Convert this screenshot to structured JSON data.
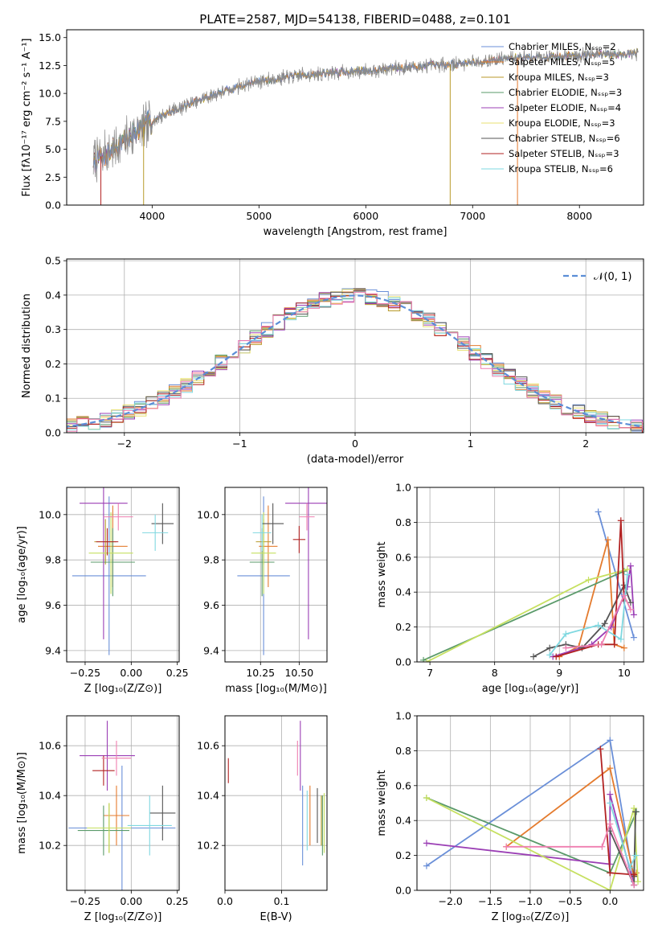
{
  "chart_data": [
    {
      "id": "spectrum",
      "type": "line",
      "title": "PLATE=2587, MJD=54138, FIBERID=0488, z=0.101",
      "xlabel": "wavelength [Angstrom, rest frame]",
      "ylabel": "Flux [fλ10⁻¹⁷ erg cm⁻² s⁻¹ A⁻¹]",
      "xlim": [
        3200,
        8600
      ],
      "ylim": [
        0,
        15.7
      ],
      "xticks": [
        4000,
        5000,
        6000,
        7000,
        8000
      ],
      "xtick_labels": [
        "4000",
        "5000",
        "6000",
        "7000",
        "8000"
      ],
      "yticks": [
        0,
        2.5,
        5,
        7.5,
        10,
        12.5,
        15
      ],
      "ytick_labels": [
        "0.0",
        "2.5",
        "5.0",
        "7.5",
        "10.0",
        "12.5",
        "15.0"
      ],
      "grid": false,
      "legend": "upper-right",
      "series": [
        {
          "name": "Chabrier MILES, Nₛₛₚ=2",
          "color": "#6a8fd8"
        },
        {
          "name": "Salpeter MILES, Nₛₛₚ=5",
          "color": "#e47b2e"
        },
        {
          "name": "Kroupa MILES, Nₛₛₚ=3",
          "color": "#b89a2a"
        },
        {
          "name": "Chabrier ELODIE, Nₛₛₚ=3",
          "color": "#5a9a6a"
        },
        {
          "name": "Salpeter ELODIE, Nₛₛₚ=4",
          "color": "#9b3fb5"
        },
        {
          "name": "Kroupa ELODIE, Nₛₛₚ=3",
          "color": "#e8e070"
        },
        {
          "name": "Chabrier STELIB, Nₛₛₚ=6",
          "color": "#555555"
        },
        {
          "name": "Salpeter STELIB, Nₛₛₚ=3",
          "color": "#b22222"
        },
        {
          "name": "Kroupa STELIB, Nₛₛₚ=6",
          "color": "#7fd8e0"
        }
      ],
      "data_color": "#8a8a8a",
      "continuum": {
        "x": [
          3450,
          3600,
          3800,
          4000,
          4200,
          4500,
          4800,
          5000,
          5300,
          5600,
          5900,
          6200,
          6500,
          6800,
          7100,
          7400,
          7700,
          8000,
          8300,
          8550
        ],
        "y": [
          4.0,
          4.8,
          6.2,
          7.5,
          8.5,
          9.6,
          10.6,
          11.1,
          11.5,
          11.8,
          12.0,
          12.2,
          12.4,
          12.6,
          12.9,
          13.2,
          13.3,
          13.4,
          13.5,
          13.6
        ]
      },
      "vertical_lines": [
        {
          "x": 3520,
          "color": "#b22222"
        },
        {
          "x": 3920,
          "color": "#b89a2a"
        },
        {
          "x": 6790,
          "color": "#b89a2a"
        },
        {
          "x": 7420,
          "color": "#e47b2e"
        }
      ]
    },
    {
      "id": "residuals",
      "type": "histogram",
      "xlabel": "(data-model)/error",
      "ylabel": "Normed distribution",
      "xlim": [
        -2.5,
        2.5
      ],
      "ylim": [
        0,
        0.505
      ],
      "xticks": [
        -2,
        -1,
        0,
        1,
        2
      ],
      "xtick_labels": [
        "−2",
        "−1",
        "0",
        "1",
        "2"
      ],
      "yticks": [
        0,
        0.1,
        0.2,
        0.3,
        0.4,
        0.5
      ],
      "ytick_labels": [
        "0.0",
        "0.1",
        "0.2",
        "0.3",
        "0.4",
        "0.5"
      ],
      "grid": true,
      "legend": "upper-right",
      "gaussian": {
        "name": "𝒩(0, 1)",
        "color": "#5b8ed6"
      },
      "bin_width": 0.1
    },
    {
      "id": "age-vs-Z",
      "type": "errorbar",
      "xlabel": "Z [log₁₀(Z/Z⊙)]",
      "ylabel": "age  [log₁₀(age/yr)]",
      "xlim": [
        -0.35,
        0.26
      ],
      "ylim": [
        9.35,
        10.12
      ],
      "xticks": [
        -0.25,
        0,
        0.25
      ],
      "xtick_labels": [
        "−0.25",
        "0.00",
        "0.25"
      ],
      "yticks": [
        9.4,
        9.6,
        9.8,
        10.0
      ],
      "ytick_labels": [
        "9.4",
        "9.6",
        "9.8",
        "10.0"
      ],
      "grid": true,
      "points": [
        {
          "x": -0.12,
          "y": 9.73,
          "xerr": 0.2,
          "yerr": 0.35,
          "color": "#6a8fd8"
        },
        {
          "x": -0.1,
          "y": 9.86,
          "xerr": 0.08,
          "yerr": 0.18,
          "color": "#e47b2e"
        },
        {
          "x": -0.14,
          "y": 9.88,
          "xerr": 0.06,
          "yerr": 0.1,
          "color": "#b89a2a"
        },
        {
          "x": -0.1,
          "y": 9.79,
          "xerr": 0.12,
          "yerr": 0.15,
          "color": "#5a9a6a"
        },
        {
          "x": -0.15,
          "y": 10.05,
          "xerr": 0.13,
          "yerr": 0.6,
          "color": "#9b3fb5"
        },
        {
          "x": -0.11,
          "y": 9.83,
          "xerr": 0.12,
          "yerr": 0.18,
          "color": "#c6e060"
        },
        {
          "x": 0.17,
          "y": 9.96,
          "xerr": 0.06,
          "yerr": 0.09,
          "color": "#555555"
        },
        {
          "x": -0.13,
          "y": 9.88,
          "xerr": 0.06,
          "yerr": 0.06,
          "color": "#b22222"
        },
        {
          "x": 0.13,
          "y": 9.92,
          "xerr": 0.07,
          "yerr": 0.08,
          "color": "#7fd8e0"
        },
        {
          "x": -0.07,
          "y": 9.99,
          "xerr": 0.08,
          "yerr": 0.06,
          "color": "#ef7fb0"
        }
      ]
    },
    {
      "id": "age-vs-mass",
      "type": "errorbar",
      "xlabel": "mass [log₁₀(M/M⊙)]",
      "ylabel": "",
      "xlim": [
        10.02,
        10.68
      ],
      "ylim": [
        9.35,
        10.12
      ],
      "xticks": [
        10.25,
        10.5
      ],
      "xtick_labels": [
        "10.25",
        "10.50"
      ],
      "yticks": [
        9.4,
        9.6,
        9.8,
        10.0
      ],
      "ytick_labels": [
        "9.4",
        "9.6",
        "9.8",
        "10.0"
      ],
      "grid": true,
      "points": [
        {
          "x": 10.27,
          "y": 9.73,
          "xerr": 0.17,
          "yerr": 0.35,
          "color": "#6a8fd8"
        },
        {
          "x": 10.3,
          "y": 9.86,
          "xerr": 0.06,
          "yerr": 0.18,
          "color": "#e47b2e"
        },
        {
          "x": 10.27,
          "y": 9.88,
          "xerr": 0.05,
          "yerr": 0.1,
          "color": "#b89a2a"
        },
        {
          "x": 10.26,
          "y": 9.79,
          "xerr": 0.08,
          "yerr": 0.15,
          "color": "#5a9a6a"
        },
        {
          "x": 10.56,
          "y": 10.05,
          "xerr": 0.15,
          "yerr": 0.6,
          "color": "#9b3fb5"
        },
        {
          "x": 10.27,
          "y": 9.83,
          "xerr": 0.08,
          "yerr": 0.18,
          "color": "#c6e060"
        },
        {
          "x": 10.33,
          "y": 9.96,
          "xerr": 0.07,
          "yerr": 0.09,
          "color": "#555555"
        },
        {
          "x": 10.5,
          "y": 9.89,
          "xerr": 0.04,
          "yerr": 0.06,
          "color": "#b22222"
        },
        {
          "x": 10.26,
          "y": 9.92,
          "xerr": 0.06,
          "yerr": 0.08,
          "color": "#7fd8e0"
        },
        {
          "x": 10.55,
          "y": 9.99,
          "xerr": 0.05,
          "yerr": 0.06,
          "color": "#ef7fb0"
        }
      ]
    },
    {
      "id": "mass-weight-vs-age",
      "type": "line",
      "xlabel": "age  [log₁₀(age/yr)]",
      "ylabel": "mass weight",
      "xlim": [
        6.8,
        10.3
      ],
      "ylim": [
        0,
        1.0
      ],
      "xticks": [
        7,
        8,
        9,
        10
      ],
      "xtick_labels": [
        "7",
        "8",
        "9",
        "10"
      ],
      "yticks": [
        0,
        0.2,
        0.4,
        0.6,
        0.8,
        1.0
      ],
      "ytick_labels": [
        "0.0",
        "0.2",
        "0.4",
        "0.6",
        "0.8",
        "1.0"
      ],
      "grid": true,
      "series": [
        {
          "color": "#6a8fd8",
          "x": [
            9.6,
            10.15
          ],
          "y": [
            0.86,
            0.14
          ]
        },
        {
          "color": "#e47b2e",
          "x": [
            9.0,
            9.3,
            9.75,
            9.85,
            10.0
          ],
          "y": [
            0.03,
            0.09,
            0.7,
            0.1,
            0.08
          ]
        },
        {
          "color": "#5a9a6a",
          "x": [
            6.9,
            10.0
          ],
          "y": [
            0.01,
            0.52
          ]
        },
        {
          "color": "#9b3fb5",
          "x": [
            8.9,
            9.5,
            9.8,
            10.05,
            10.1,
            10.15
          ],
          "y": [
            0.03,
            0.1,
            0.2,
            0.43,
            0.55,
            0.27
          ]
        },
        {
          "color": "#c6e060",
          "x": [
            6.95,
            9.45,
            10.05
          ],
          "y": [
            0.0,
            0.47,
            0.53
          ]
        },
        {
          "color": "#555555",
          "x": [
            8.6,
            8.85,
            9.1,
            9.35,
            9.7,
            10.0,
            10.1
          ],
          "y": [
            0.03,
            0.08,
            0.1,
            0.08,
            0.22,
            0.44,
            0.34
          ]
        },
        {
          "color": "#b22222",
          "x": [
            8.95,
            9.6,
            9.85,
            9.95,
            10.0
          ],
          "y": [
            0.03,
            0.1,
            0.1,
            0.81,
            0.35
          ]
        },
        {
          "color": "#7fd8e0",
          "x": [
            8.85,
            9.1,
            9.6,
            9.95,
            10.05
          ],
          "y": [
            0.04,
            0.16,
            0.21,
            0.13,
            0.5
          ]
        },
        {
          "color": "#ef7fb0",
          "x": [
            9.1,
            9.65,
            10.0,
            10.1
          ],
          "y": [
            0.08,
            0.1,
            0.38,
            0.3
          ]
        }
      ]
    },
    {
      "id": "mass-vs-Z",
      "type": "errorbar",
      "xlabel": "Z [log₁₀(Z/Z⊙)]",
      "ylabel": "mass [log₁₀(M/M⊙)]",
      "xlim": [
        -0.35,
        0.26
      ],
      "ylim": [
        10.02,
        10.72
      ],
      "xticks": [
        -0.25,
        0,
        0.25
      ],
      "xtick_labels": [
        "−0.25",
        "0.00",
        "0.25"
      ],
      "yticks": [
        10.2,
        10.4,
        10.6
      ],
      "ytick_labels": [
        "10.2",
        "10.4",
        "10.6"
      ],
      "grid": true,
      "points": [
        {
          "x": -0.05,
          "y": 10.27,
          "xerr": 0.29,
          "yerr": 0.25,
          "color": "#6a8fd8"
        },
        {
          "x": -0.08,
          "y": 10.32,
          "xerr": 0.07,
          "yerr": 0.12,
          "color": "#e47b2e"
        },
        {
          "x": -0.12,
          "y": 10.27,
          "xerr": 0.1,
          "yerr": 0.1,
          "color": "#b89a2a"
        },
        {
          "x": -0.15,
          "y": 10.26,
          "xerr": 0.14,
          "yerr": 0.1,
          "color": "#5a9a6a"
        },
        {
          "x": -0.13,
          "y": 10.56,
          "xerr": 0.15,
          "yerr": 0.14,
          "color": "#9b3fb5"
        },
        {
          "x": -0.12,
          "y": 10.27,
          "xerr": 0.12,
          "yerr": 0.1,
          "color": "#c6e060"
        },
        {
          "x": 0.17,
          "y": 10.33,
          "xerr": 0.07,
          "yerr": 0.11,
          "color": "#555555"
        },
        {
          "x": -0.15,
          "y": 10.5,
          "xerr": 0.06,
          "yerr": 0.06,
          "color": "#b22222"
        },
        {
          "x": 0.1,
          "y": 10.28,
          "xerr": 0.12,
          "yerr": 0.12,
          "color": "#7fd8e0"
        },
        {
          "x": -0.08,
          "y": 10.55,
          "xerr": 0.08,
          "yerr": 0.07,
          "color": "#ef7fb0"
        }
      ]
    },
    {
      "id": "mass-vs-EBV",
      "type": "errorbar",
      "xlabel": "E(B-V)",
      "ylabel": "",
      "xlim": [
        0.0,
        0.18
      ],
      "ylim": [
        10.02,
        10.72
      ],
      "xticks": [
        0,
        0.1
      ],
      "xtick_labels": [
        "0.0",
        "0.1"
      ],
      "yticks": [
        10.2,
        10.4,
        10.6
      ],
      "ytick_labels": [
        "10.2",
        "10.4",
        "10.6"
      ],
      "grid": true,
      "points": [
        {
          "x": 0.137,
          "y": 10.28,
          "xerr": 0,
          "yerr": 0.16,
          "color": "#6a8fd8"
        },
        {
          "x": 0.15,
          "y": 10.32,
          "xerr": 0,
          "yerr": 0.12,
          "color": "#e47b2e"
        },
        {
          "x": 0.17,
          "y": 10.3,
          "xerr": 0,
          "yerr": 0.1,
          "color": "#b89a2a"
        },
        {
          "x": 0.172,
          "y": 10.28,
          "xerr": 0,
          "yerr": 0.12,
          "color": "#5a9a6a"
        },
        {
          "x": 0.133,
          "y": 10.56,
          "xerr": 0,
          "yerr": 0.14,
          "color": "#9b3fb5"
        },
        {
          "x": 0.175,
          "y": 10.29,
          "xerr": 0,
          "yerr": 0.12,
          "color": "#c6e060"
        },
        {
          "x": 0.163,
          "y": 10.32,
          "xerr": 0,
          "yerr": 0.11,
          "color": "#555555"
        },
        {
          "x": 0.006,
          "y": 10.5,
          "xerr": 0,
          "yerr": 0.05,
          "color": "#b22222"
        },
        {
          "x": 0.145,
          "y": 10.3,
          "xerr": 0,
          "yerr": 0.12,
          "color": "#7fd8e0"
        },
        {
          "x": 0.128,
          "y": 10.55,
          "xerr": 0,
          "yerr": 0.07,
          "color": "#ef7fb0"
        }
      ]
    },
    {
      "id": "mass-weight-vs-Z",
      "type": "line",
      "xlabel": "Z [log₁₀(Z/Z⊙)]",
      "ylabel": "mass weight",
      "xlim": [
        -2.42,
        0.42
      ],
      "ylim": [
        0,
        1.0
      ],
      "xticks": [
        -2.0,
        -1.5,
        -1.0,
        -0.5,
        0.0
      ],
      "xtick_labels": [
        "−2.0",
        "−1.5",
        "−1.0",
        "−0.5",
        "0.0"
      ],
      "yticks": [
        0,
        0.2,
        0.4,
        0.6,
        0.8,
        1.0
      ],
      "ytick_labels": [
        "0.0",
        "0.2",
        "0.4",
        "0.6",
        "0.8",
        "1.0"
      ],
      "grid": true,
      "series": [
        {
          "color": "#6a8fd8",
          "x": [
            -2.3,
            0.0,
            0.3
          ],
          "y": [
            0.14,
            0.86,
            0.05
          ]
        },
        {
          "color": "#e47b2e",
          "x": [
            -1.3,
            0.0,
            0.3,
            0.33
          ],
          "y": [
            0.25,
            0.7,
            0.08,
            0.1
          ]
        },
        {
          "color": "#5a9a6a",
          "x": [
            -2.3,
            0.0,
            0.33
          ],
          "y": [
            0.53,
            0.1,
            0.45
          ]
        },
        {
          "color": "#9b3fb5",
          "x": [
            -2.3,
            0.0,
            0.0,
            0.3
          ],
          "y": [
            0.27,
            0.15,
            0.55,
            0.03
          ]
        },
        {
          "color": "#c6e060",
          "x": [
            -2.3,
            0.0,
            0.3,
            0.35
          ],
          "y": [
            0.53,
            0.0,
            0.47,
            0.05
          ]
        },
        {
          "color": "#555555",
          "x": [
            0.0,
            0.3,
            0.32,
            0.3
          ],
          "y": [
            0.34,
            0.03,
            0.45,
            0.08
          ]
        },
        {
          "color": "#b22222",
          "x": [
            -0.12,
            0.0,
            0.3
          ],
          "y": [
            0.81,
            0.1,
            0.09
          ]
        },
        {
          "color": "#7fd8e0",
          "x": [
            0.0,
            0.25,
            0.32
          ],
          "y": [
            0.5,
            0.13,
            0.2
          ]
        },
        {
          "color": "#ef7fb0",
          "x": [
            -1.3,
            -0.1,
            0.0,
            0.3
          ],
          "y": [
            0.25,
            0.25,
            0.38,
            0.03
          ]
        }
      ]
    }
  ]
}
